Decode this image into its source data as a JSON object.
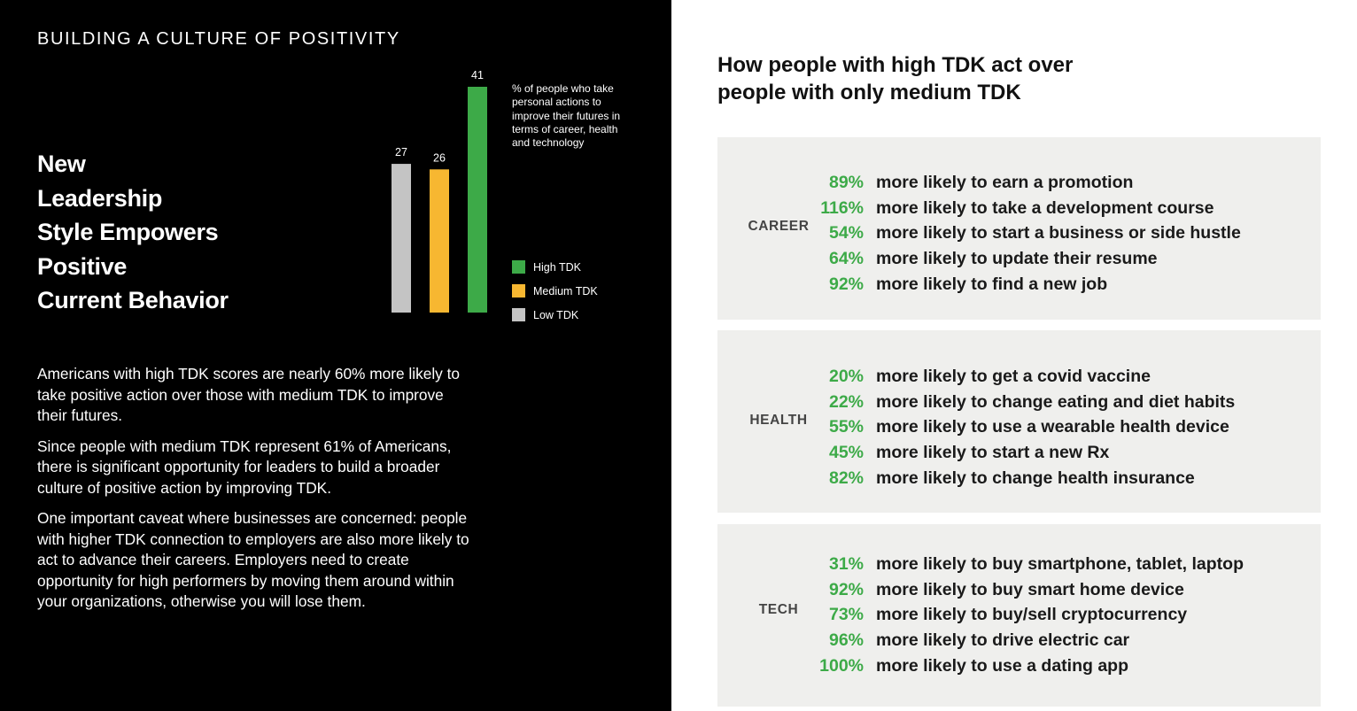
{
  "left": {
    "section_title": "BUILDING A CULTURE OF POSITIVITY",
    "headline_lines": [
      "New",
      "Leadership",
      "Style Empowers",
      "Positive",
      "Current Behavior"
    ],
    "chart_note": "% of people who take personal actions to improve their futures in terms of career, health and technology",
    "paragraphs": [
      "Americans with high TDK scores are nearly 60% more likely to take positive action over those with medium TDK to improve their futures.",
      "Since people with medium TDK represent 61% of Americans, there is significant opportunity for leaders to build a broader culture of positive action by improving TDK.",
      "One important caveat where businesses are concerned: people with higher TDK connection to employers are also more likely to act to advance their careers. Employers need to create opportunity for high performers by moving them around within your organizations, otherwise you will lose them."
    ]
  },
  "legend": [
    {
      "label": "High TDK",
      "color": "#3daa48"
    },
    {
      "label": "Medium TDK",
      "color": "#f7b731"
    },
    {
      "label": "Low TDK",
      "color": "#c4c4c4"
    }
  ],
  "chart_data": {
    "type": "bar",
    "categories": [
      "Low TDK",
      "Medium TDK",
      "High TDK"
    ],
    "values": [
      27,
      26,
      41
    ],
    "colors": [
      "#c4c4c4",
      "#f7b731",
      "#3daa48"
    ],
    "data_labels": [
      "27",
      "26",
      "41"
    ],
    "ylim": [
      0,
      41
    ],
    "grid": false,
    "legend_position": "right"
  },
  "right": {
    "title_lines": [
      "How people with high TDK act over",
      "people with only medium TDK"
    ],
    "panels": [
      {
        "label": "CAREER",
        "rows": [
          {
            "pct": "89%",
            "text": "more likely to earn a promotion"
          },
          {
            "pct": "116%",
            "text": "more likely to take a development course"
          },
          {
            "pct": "54%",
            "text": "more likely to start a business or side hustle"
          },
          {
            "pct": "64%",
            "text": "more likely to update their resume"
          },
          {
            "pct": "92%",
            "text": "more likely to find a new job"
          }
        ]
      },
      {
        "label": "HEALTH",
        "rows": [
          {
            "pct": "20%",
            "text": "more likely to get a covid vaccine"
          },
          {
            "pct": "22%",
            "text": "more likely to change eating and diet habits"
          },
          {
            "pct": "55%",
            "text": "more likely to use a wearable health device"
          },
          {
            "pct": "45%",
            "text": "more likely to start a new Rx"
          },
          {
            "pct": "82%",
            "text": "more likely to change health insurance"
          }
        ]
      },
      {
        "label": "TECH",
        "rows": [
          {
            "pct": "31%",
            "text": "more likely to buy smartphone, tablet, laptop"
          },
          {
            "pct": "92%",
            "text": "more likely to buy smart home device"
          },
          {
            "pct": "73%",
            "text": "more likely to buy/sell cryptocurrency"
          },
          {
            "pct": "96%",
            "text": "more likely to drive electric car"
          },
          {
            "pct": "100%",
            "text": "more likely to use a dating app"
          }
        ]
      }
    ]
  }
}
